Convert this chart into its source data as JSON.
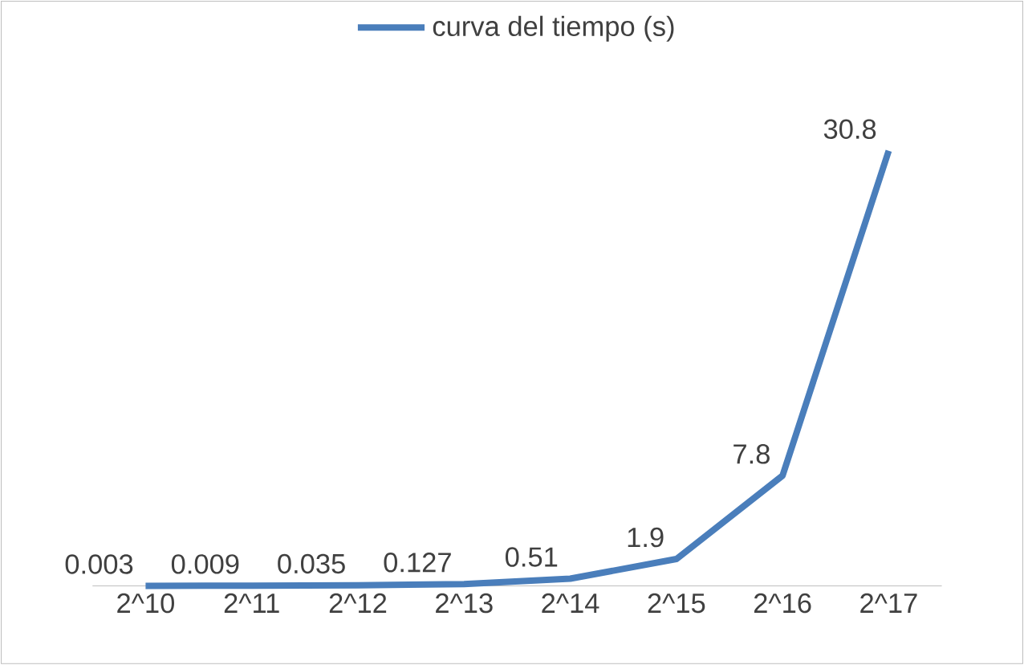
{
  "chart_data": {
    "type": "line",
    "categories": [
      "2^10",
      "2^11",
      "2^12",
      "2^13",
      "2^14",
      "2^15",
      "2^16",
      "2^17"
    ],
    "series": [
      {
        "name": "curva del tiempo (s)",
        "color": "#4a7ebb",
        "values": [
          0.003,
          0.009,
          0.035,
          0.127,
          0.51,
          1.9,
          7.8,
          30.8
        ]
      }
    ],
    "data_labels": true,
    "legend": "top",
    "marker": "none",
    "line_style": "solid"
  }
}
